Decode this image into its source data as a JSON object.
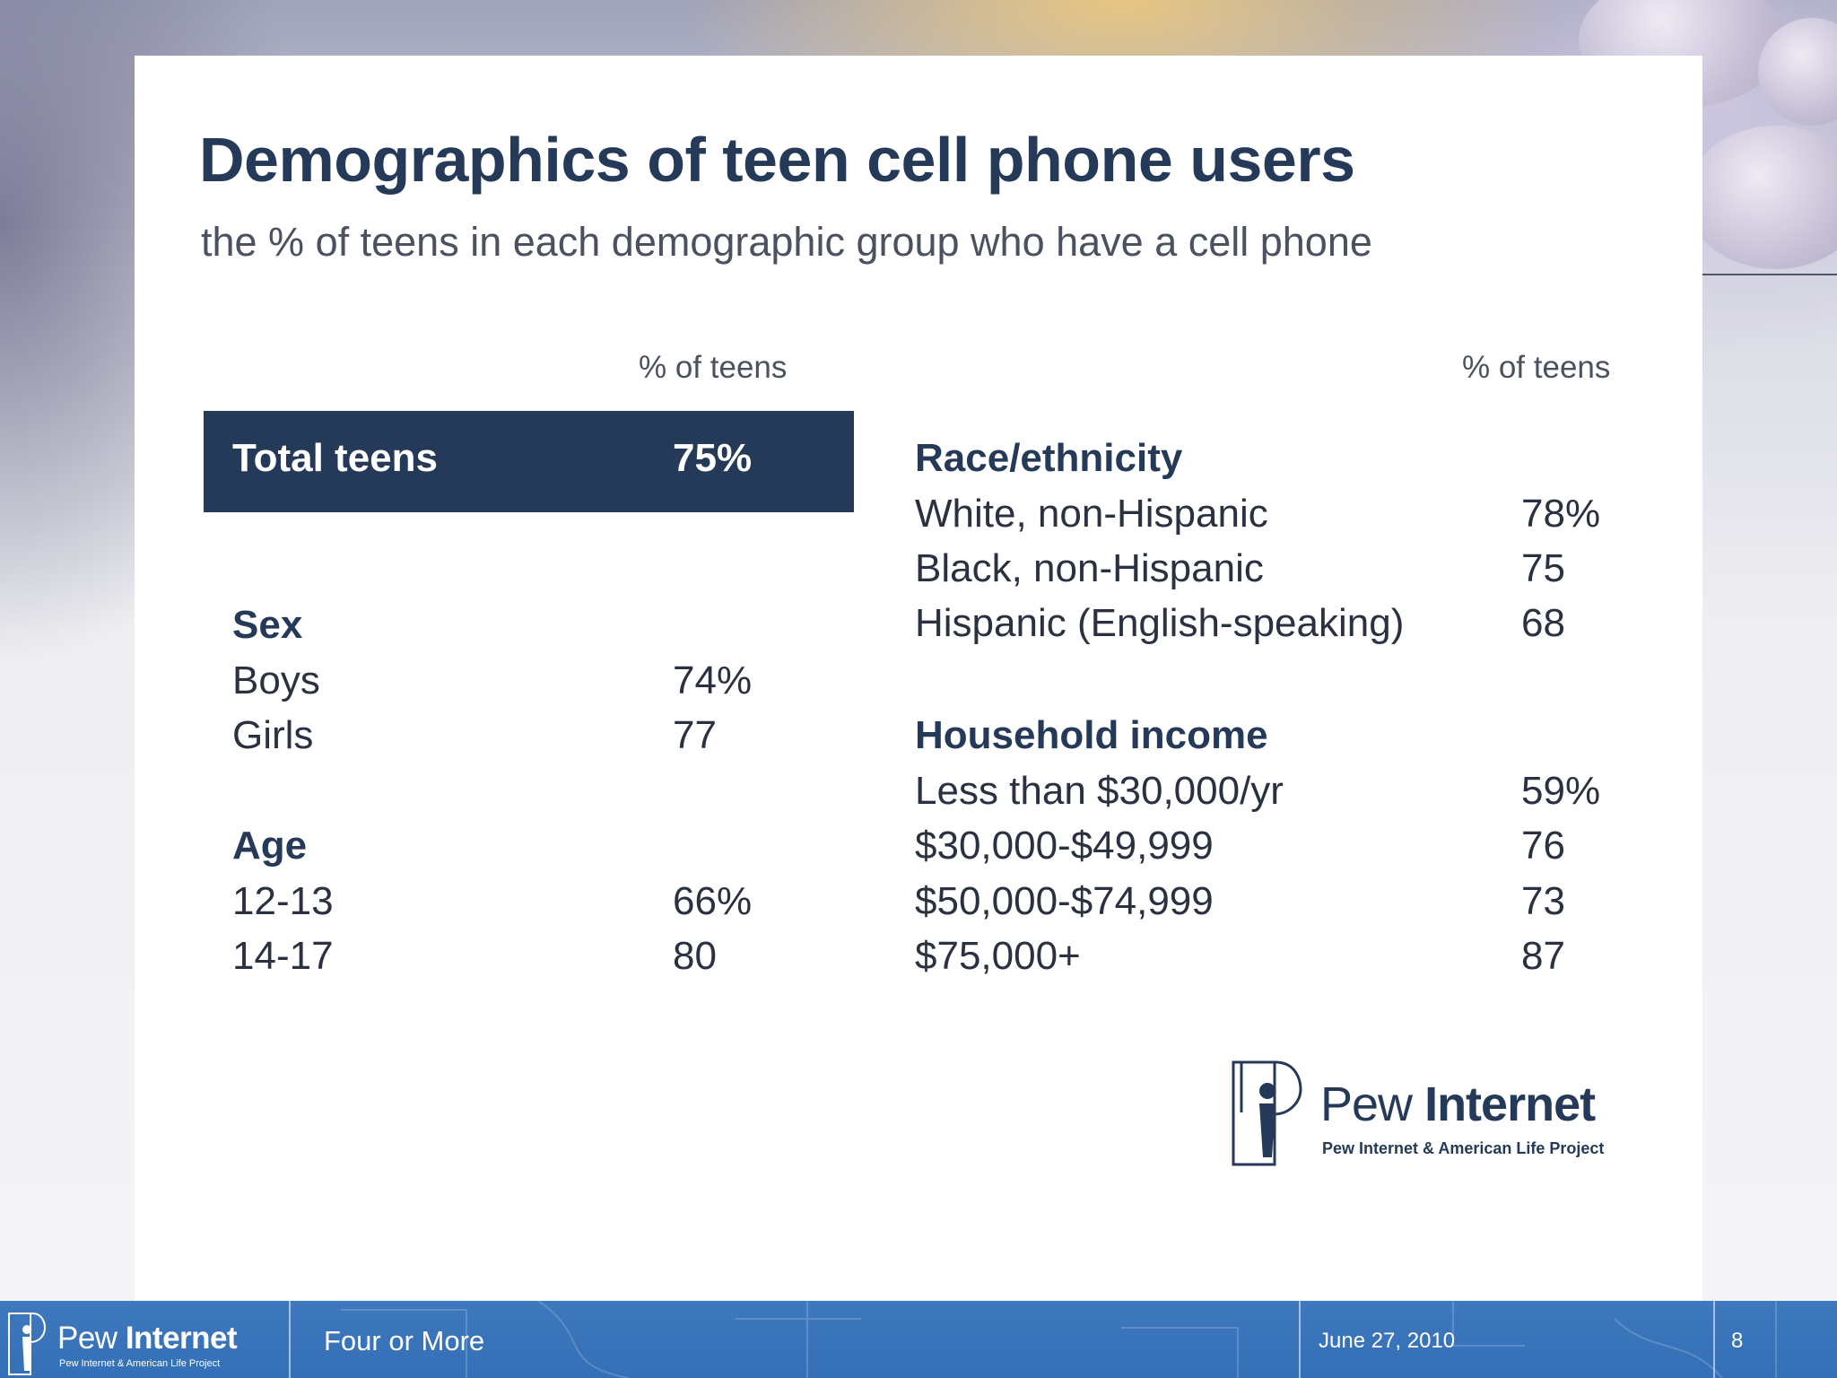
{
  "slide": {
    "title": "Demographics of teen cell phone users",
    "subtitle": "the % of teens in each demographic group who have a cell phone",
    "left_column_header": "% of teens",
    "right_column_header": "% of teens",
    "total": {
      "label": "Total teens",
      "value": "75%"
    },
    "sex": {
      "heading": "Sex",
      "rows": [
        {
          "label": "Boys",
          "value": "74%"
        },
        {
          "label": "Girls",
          "value": "77"
        }
      ]
    },
    "age": {
      "heading": "Age",
      "rows": [
        {
          "label": "12-13",
          "value": "66%"
        },
        {
          "label": "14-17",
          "value": "80"
        }
      ]
    },
    "race": {
      "heading": "Race/ethnicity",
      "rows": [
        {
          "label": "White, non-Hispanic",
          "value": "78%"
        },
        {
          "label": "Black, non-Hispanic",
          "value": "75"
        },
        {
          "label": "Hispanic (English-speaking)",
          "value": "68"
        }
      ]
    },
    "income": {
      "heading": "Household income",
      "rows": [
        {
          "label": "Less than $30,000/yr",
          "value": "59%"
        },
        {
          "label": "$30,000-$49,999",
          "value": "76"
        },
        {
          "label": "$50,000-$74,999",
          "value": "73"
        },
        {
          "label": "$75,000+",
          "value": "87"
        }
      ]
    },
    "logo": {
      "word_light": "Pew",
      "word_bold": "Internet",
      "tagline": "Pew Internet & American Life Project"
    }
  },
  "footer": {
    "logo": {
      "word_light": "Pew",
      "word_bold": "Internet",
      "tagline": "Pew Internet & American Life Project"
    },
    "presentation_title": "Four or More",
    "date": "June 27, 2010",
    "page_number": "8"
  },
  "colors": {
    "navy": "#253a58",
    "footer_blue": "#3a74ba",
    "text": "#2b3140"
  },
  "icons": {
    "logo_mark": "pew-person-keyhole-icon"
  }
}
